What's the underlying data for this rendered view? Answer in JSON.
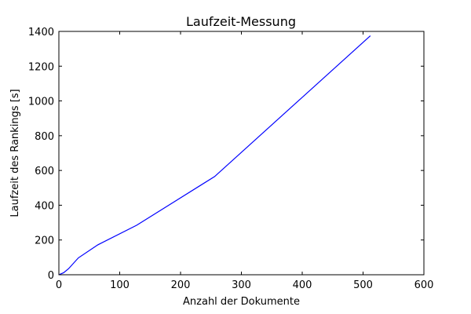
{
  "chart_data": {
    "type": "line",
    "title": "Laufzeit-Messung",
    "xlabel": "Anzahl der Dokumente",
    "ylabel": "Laufzeit des Rankings [s]",
    "xlim": [
      0,
      600
    ],
    "ylim": [
      0,
      1400
    ],
    "xticks": [
      0,
      100,
      200,
      300,
      400,
      500,
      600
    ],
    "yticks": [
      0,
      200,
      400,
      600,
      800,
      1000,
      1200,
      1400
    ],
    "grid": false,
    "series": [
      {
        "color": "#0000ff",
        "x": [
          1,
          2,
          4,
          8,
          16,
          32,
          64,
          128,
          256,
          512
        ],
        "y": [
          1,
          3,
          6,
          12,
          35,
          97,
          172,
          285,
          565,
          1375
        ]
      }
    ]
  }
}
